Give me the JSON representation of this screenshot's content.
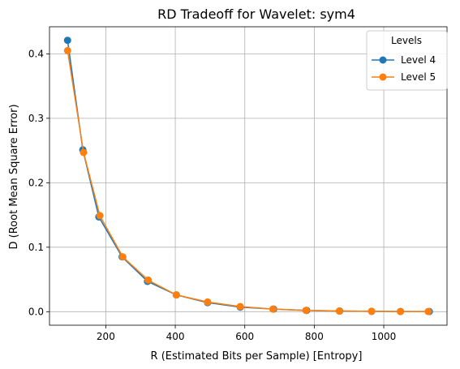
{
  "chart_data": {
    "type": "line",
    "title": "RD Tradeoff for Wavelet: sym4",
    "xlabel": "R (Estimated Bits per Sample) [Entropy]",
    "ylabel": "D (Root Mean Square Error)",
    "xlim": [
      38,
      1182
    ],
    "ylim": [
      -0.021,
      0.442
    ],
    "xticks": [
      200,
      400,
      600,
      800,
      1000
    ],
    "xtick_labels": [
      "200",
      "400",
      "600",
      "800",
      "1000"
    ],
    "yticks": [
      0.0,
      0.1,
      0.2,
      0.3,
      0.4
    ],
    "ytick_labels": [
      "0.0",
      "0.1",
      "0.2",
      "0.3",
      "0.4"
    ],
    "grid": true,
    "legend": {
      "title": "Levels",
      "position": "top-right"
    },
    "series": [
      {
        "name": "Level 4",
        "color": "#1f77b4",
        "x": [
          90,
          134,
          180,
          247,
          320,
          403,
          493,
          587,
          683,
          778,
          873,
          965,
          1048,
          1131
        ],
        "y": [
          0.421,
          0.251,
          0.147,
          0.085,
          0.047,
          0.026,
          0.014,
          0.007,
          0.004,
          0.002,
          0.001,
          0.0005,
          0.0003,
          0.0002
        ]
      },
      {
        "name": "Level 5",
        "color": "#ff7f0e",
        "x": [
          90,
          136,
          183,
          249,
          322,
          403,
          493,
          587,
          681,
          776,
          872,
          965,
          1048,
          1128
        ],
        "y": [
          0.405,
          0.247,
          0.149,
          0.085,
          0.049,
          0.026,
          0.015,
          0.008,
          0.004,
          0.002,
          0.001,
          0.0006,
          0.0003,
          0.0002
        ]
      }
    ]
  }
}
